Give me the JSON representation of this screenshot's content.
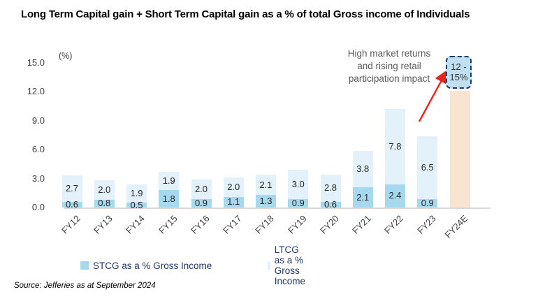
{
  "title": "Long Term Capital gain + Short Term Capital gain as a % of total Gross income of Individuals",
  "source": "Source: Jefferies as at September 2024",
  "chart_data": {
    "type": "bar",
    "stacked": true,
    "unit_label": "(%)",
    "title": "Long Term Capital gain + Short Term Capital gain as a % of total Gross income of Individuals",
    "categories": [
      "FY12",
      "FY13",
      "FY14",
      "FY15",
      "FY16",
      "FY17",
      "FY18",
      "FY19",
      "FY20",
      "FY21",
      "FY22",
      "FY23",
      "FY24E"
    ],
    "series": [
      {
        "name": "STCG as a % Gross Income",
        "color": "#a6d8ee",
        "values": [
          0.6,
          0.8,
          0.5,
          1.8,
          0.9,
          1.1,
          1.3,
          0.9,
          0.6,
          2.1,
          2.4,
          0.9,
          null
        ]
      },
      {
        "name": "LTCG as a % Gross Income",
        "color": "#e3f1fa",
        "values": [
          2.7,
          2.0,
          1.9,
          1.9,
          2.0,
          2.0,
          2.1,
          3.0,
          2.8,
          3.8,
          7.8,
          6.5,
          null
        ]
      }
    ],
    "forecast_bar": {
      "category": "FY24E",
      "height_pct": 12.1,
      "color": "#f9e4d2",
      "lines": [
        "12 -",
        "15%"
      ],
      "box_fill": "#c0e0f1",
      "box_border": "#1b3a5e"
    },
    "ylim": [
      0,
      15
    ],
    "yticks": [
      "0.0",
      "3.0",
      "6.0",
      "9.0",
      "12.0",
      "15.0"
    ],
    "grid": false,
    "legend_position": "bottom",
    "annotation": {
      "text": "High market returns and rising retail participation impact",
      "arrow_color": "#e8251d"
    }
  }
}
